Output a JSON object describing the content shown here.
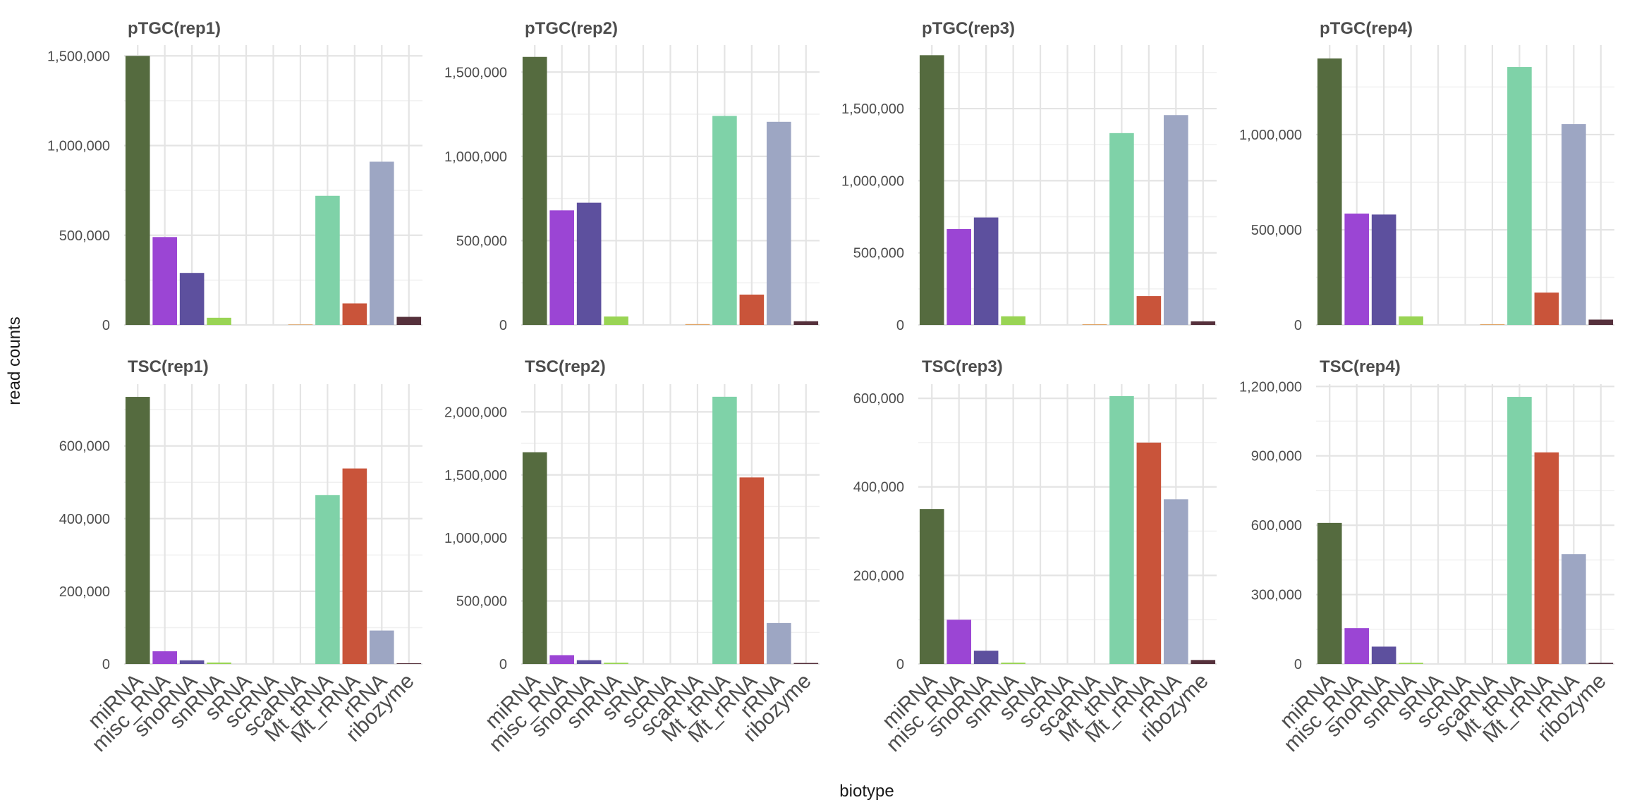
{
  "chart_data": {
    "type": "bar",
    "layout": "facet grid 2 rows x 4 columns, independent y scales",
    "xlabel": "biotype",
    "ylabel": "read counts",
    "categories": [
      "miRNA",
      "misc_RNA",
      "snoRNA",
      "snRNA",
      "sRNA",
      "scRNA",
      "scaRNA",
      "Mt_tRNA",
      "Mt_rRNA",
      "rRNA",
      "ribozyme"
    ],
    "colors": [
      "#556b3f",
      "#9b45d4",
      "#5d509e",
      "#99d454",
      "#e8c98a",
      "#d9c9a6",
      "#e0a466",
      "#7fd2a8",
      "#c9543a",
      "#9da6c3",
      "#55303b"
    ],
    "legend": "none",
    "grid": true,
    "panels": [
      {
        "title": "pTGC(rep1)",
        "values": [
          1500000,
          490000,
          290000,
          40000,
          0,
          0,
          3000,
          720000,
          120000,
          910000,
          45000
        ],
        "ylim": [
          0,
          1560000
        ],
        "yticks": [
          0,
          500000,
          1000000,
          1500000
        ],
        "ytick_labels": [
          "0",
          "500,000",
          "1,000,000",
          "1,500,000"
        ]
      },
      {
        "title": "pTGC(rep2)",
        "values": [
          1590000,
          680000,
          725000,
          50000,
          0,
          0,
          5000,
          1240000,
          180000,
          1205000,
          22000
        ],
        "ylim": [
          0,
          1660000
        ],
        "yticks": [
          0,
          500000,
          1000000,
          1500000
        ],
        "ytick_labels": [
          "0",
          "500,000",
          "1,000,000",
          "1,500,000"
        ]
      },
      {
        "title": "pTGC(rep3)",
        "values": [
          1870000,
          665000,
          745000,
          60000,
          0,
          0,
          5000,
          1330000,
          200000,
          1455000,
          25000
        ],
        "ylim": [
          0,
          1940000
        ],
        "yticks": [
          0,
          500000,
          1000000,
          1500000
        ],
        "ytick_labels": [
          "0",
          "500,000",
          "1,000,000",
          "1,500,000"
        ]
      },
      {
        "title": "pTGC(rep4)",
        "values": [
          1400000,
          585000,
          580000,
          45000,
          0,
          0,
          4000,
          1355000,
          170000,
          1055000,
          28000
        ],
        "ylim": [
          0,
          1470000
        ],
        "yticks": [
          0,
          500000,
          1000000
        ],
        "ytick_labels": [
          "0",
          "500,000",
          "1,000,000"
        ]
      },
      {
        "title": "TSC(rep1)",
        "values": [
          735000,
          35000,
          10000,
          4000,
          0,
          0,
          0,
          465000,
          538000,
          92000,
          2000
        ],
        "ylim": [
          0,
          770000
        ],
        "yticks": [
          0,
          200000,
          400000,
          600000
        ],
        "ytick_labels": [
          "0",
          "200,000",
          "400,000",
          "600,000"
        ]
      },
      {
        "title": "TSC(rep2)",
        "values": [
          1680000,
          70000,
          30000,
          10000,
          0,
          0,
          0,
          2120000,
          1480000,
          325000,
          8000
        ],
        "ylim": [
          0,
          2220000
        ],
        "yticks": [
          0,
          500000,
          1000000,
          1500000,
          2000000
        ],
        "ytick_labels": [
          "0",
          "500,000",
          "1,000,000",
          "1,500,000",
          "2,000,000"
        ]
      },
      {
        "title": "TSC(rep3)",
        "values": [
          350000,
          100000,
          30000,
          3000,
          0,
          0,
          0,
          605000,
          500000,
          372000,
          9000
        ],
        "ylim": [
          0,
          632000
        ],
        "yticks": [
          0,
          200000,
          400000,
          600000
        ],
        "ytick_labels": [
          "0",
          "200,000",
          "400,000",
          "600,000"
        ]
      },
      {
        "title": "TSC(rep4)",
        "values": [
          610000,
          155000,
          75000,
          5000,
          0,
          0,
          0,
          1155000,
          915000,
          475000,
          5000
        ],
        "ylim": [
          0,
          1210000
        ],
        "yticks": [
          0,
          300000,
          600000,
          900000,
          1200000
        ],
        "ytick_labels": [
          "0",
          "300,000",
          "600,000",
          "900,000",
          "1,200,000"
        ]
      }
    ]
  }
}
